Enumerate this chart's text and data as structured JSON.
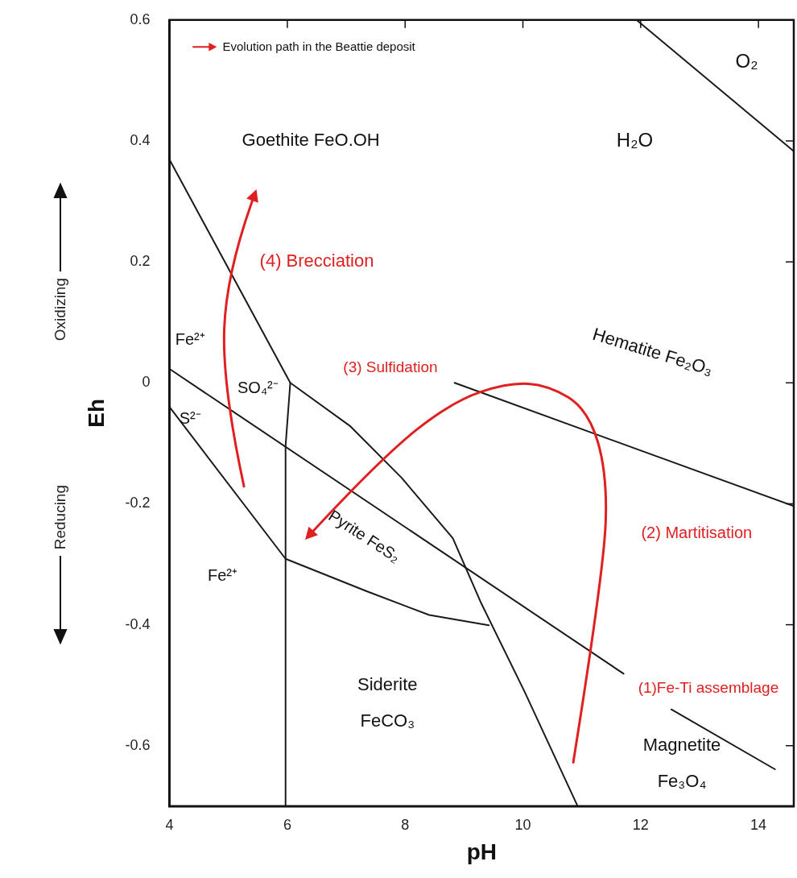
{
  "chart_data": {
    "type": "line",
    "xlabel": "pH",
    "ylabel": "Eh",
    "xlim": [
      4,
      14.6
    ],
    "ylim": [
      -0.7,
      0.6
    ],
    "xticks": [
      4,
      6,
      8,
      10,
      12,
      14
    ],
    "yticks": [
      -0.6,
      -0.4,
      -0.2,
      0,
      0.2,
      0.4,
      0.6
    ],
    "grid": false,
    "marker": "none",
    "line_style": "solid",
    "color": "#1a1a1a",
    "series": [
      {
        "x": [
          11.93,
          14.6
        ],
        "values": [
          0.6,
          0.383
        ]
      },
      {
        "x": [
          4,
          6.05,
          7.06,
          7.94,
          8.81,
          9.29,
          10.03,
          10.93
        ],
        "values": [
          0.369,
          0,
          -0.071,
          -0.157,
          -0.257,
          -0.364,
          -0.511,
          -0.7
        ]
      },
      {
        "x": [
          6.05,
          5.97,
          5.97
        ],
        "values": [
          0,
          -0.104,
          -0.7
        ]
      },
      {
        "x": [
          4,
          11.71
        ],
        "values": [
          0.023,
          -0.481
        ]
      },
      {
        "x": [
          12.52,
          14.28
        ],
        "values": [
          -0.54,
          -0.639
        ]
      },
      {
        "x": [
          4,
          5.97,
          7.33,
          8.41,
          9.42
        ],
        "values": [
          -0.04,
          -0.291,
          -0.344,
          -0.384,
          -0.401
        ]
      },
      {
        "x": [
          8.84,
          14.6
        ],
        "values": [
          0,
          -0.204
        ]
      }
    ],
    "annotations": [
      "Evolution path in the Beattie deposit",
      "O₂",
      "H₂O",
      "Goethite FeO.OH",
      "(4) Brecciation",
      "Hematite Fe₂O₃",
      "Fe²⁺",
      "SO₄²⁻",
      "S²⁻",
      "(3) Sulfidation",
      "Pyrite FeS₂",
      "(2) Martitisation",
      "Fe²⁺",
      "Siderite",
      "FeCO₃",
      "(1)Fe-Ti assemblage",
      "Magnetite",
      "Fe₃O₄",
      "Oxidizing",
      "Reducing"
    ]
  }
}
